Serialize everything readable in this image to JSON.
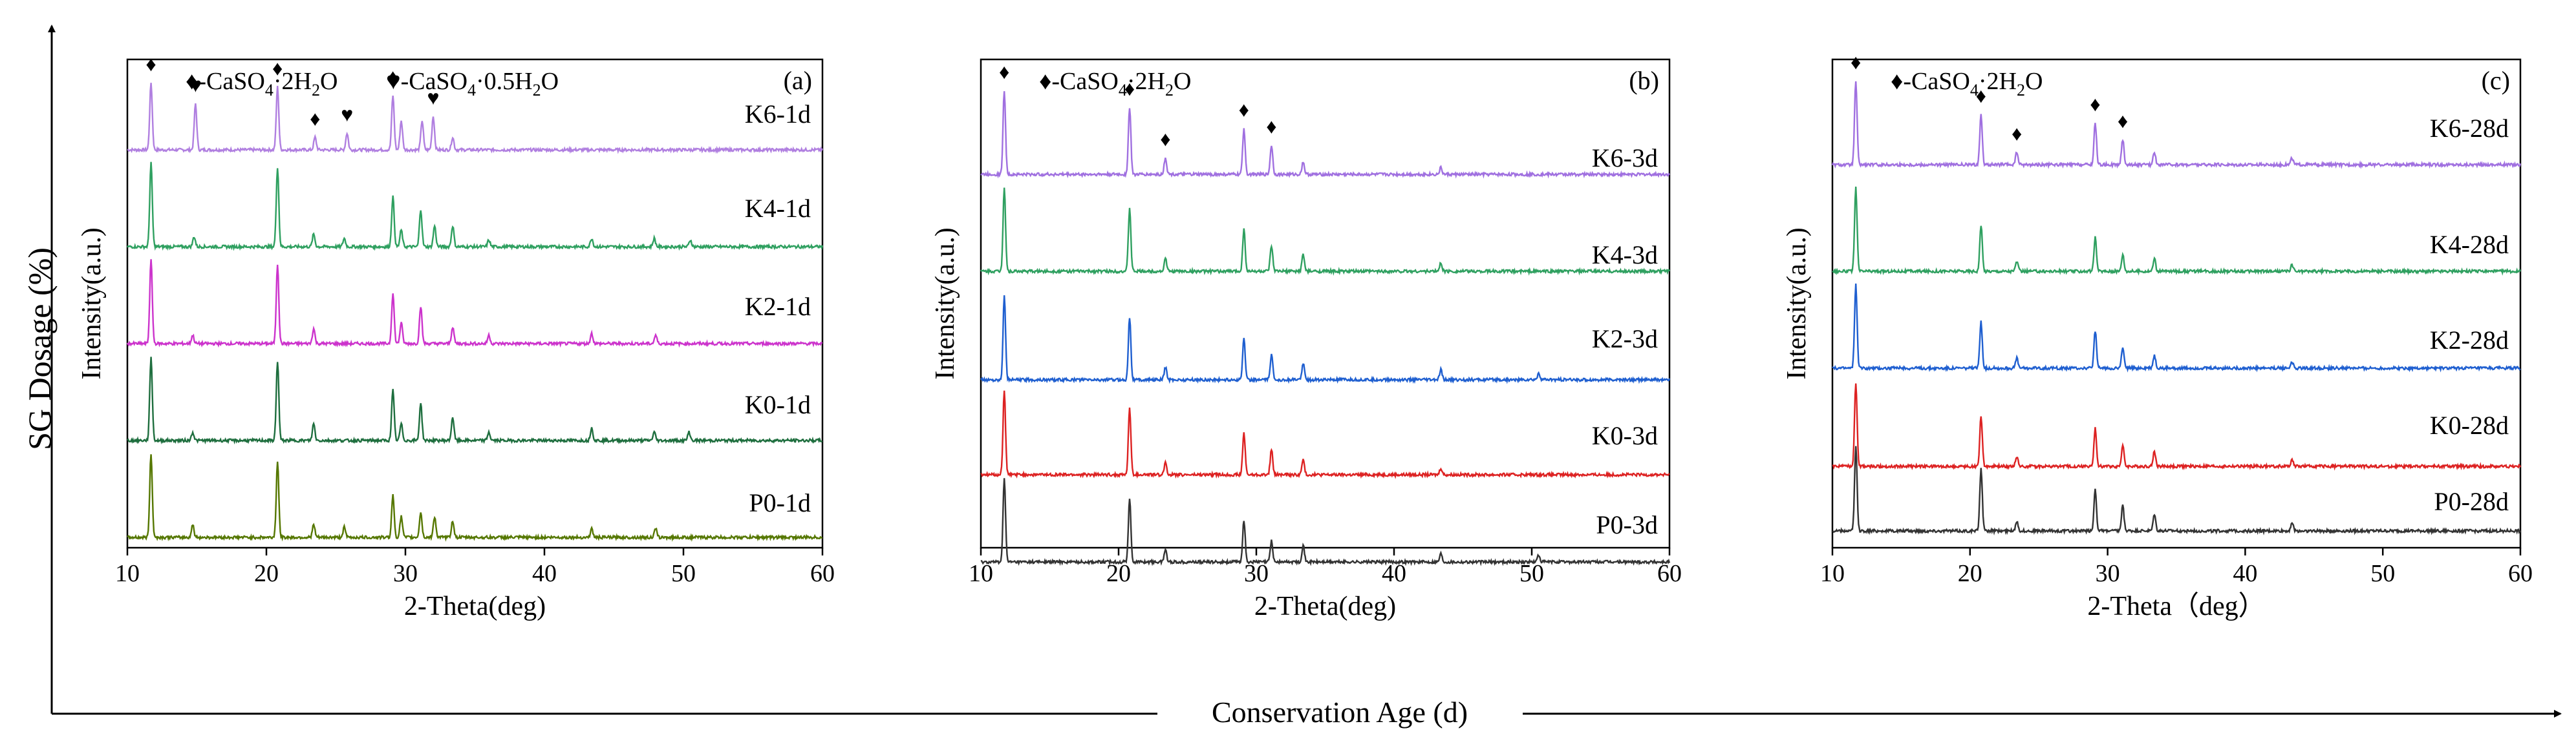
{
  "y_axis_label": "SG Dosage (%)",
  "x_axis_label": "Conservation Age (d)",
  "chart_data": [
    {
      "type": "line",
      "panel_label": "(a)",
      "xlabel": "2-Theta(deg)",
      "ylabel": "Intensity(a.u.)",
      "xlim": [
        10,
        60
      ],
      "xticks": [
        "10",
        "20",
        "30",
        "40",
        "50",
        "60"
      ],
      "legend": [
        {
          "symbol": "♦",
          "text": "-CaSO",
          "sub": "4",
          "tail": "·2H",
          "sub2": "2",
          "end": "O"
        },
        {
          "symbol": "♥",
          "text": "-CaSO",
          "sub": "4",
          "tail": "·0.5H",
          "sub2": "2",
          "end": "O"
        }
      ],
      "peak_markers": [
        {
          "symbol": "♦",
          "x": 11.7
        },
        {
          "symbol": "♥",
          "x": 14.9
        },
        {
          "symbol": "♦",
          "x": 20.8
        },
        {
          "symbol": "♦",
          "x": 23.5
        },
        {
          "symbol": "♥",
          "x": 25.8
        },
        {
          "symbol": "♦",
          "x": 29.1
        },
        {
          "symbol": "♥",
          "x": 32.0
        }
      ],
      "series": [
        {
          "name": "K6-1d",
          "color": "#b07fe0",
          "peaks": [
            [
              11.7,
              0.8
            ],
            [
              14.9,
              0.55
            ],
            [
              20.8,
              0.75
            ],
            [
              23.5,
              0.15
            ],
            [
              25.8,
              0.2
            ],
            [
              29.1,
              0.65
            ],
            [
              29.7,
              0.35
            ],
            [
              31.2,
              0.35
            ],
            [
              32.0,
              0.4
            ],
            [
              33.4,
              0.15
            ]
          ]
        },
        {
          "name": "K4-1d",
          "color": "#2fa060",
          "peaks": [
            [
              11.7,
              1.0
            ],
            [
              14.8,
              0.12
            ],
            [
              20.8,
              0.95
            ],
            [
              23.4,
              0.15
            ],
            [
              25.6,
              0.1
            ],
            [
              29.1,
              0.6
            ],
            [
              29.7,
              0.2
            ],
            [
              31.1,
              0.45
            ],
            [
              32.1,
              0.25
            ],
            [
              33.4,
              0.25
            ],
            [
              36.0,
              0.08
            ],
            [
              43.4,
              0.1
            ],
            [
              47.9,
              0.1
            ],
            [
              50.5,
              0.08
            ]
          ]
        },
        {
          "name": "K2-1d",
          "color": "#cc33cc",
          "peaks": [
            [
              11.7,
              1.0
            ],
            [
              14.7,
              0.1
            ],
            [
              20.8,
              0.95
            ],
            [
              23.4,
              0.18
            ],
            [
              29.1,
              0.6
            ],
            [
              29.7,
              0.25
            ],
            [
              31.1,
              0.45
            ],
            [
              33.4,
              0.2
            ],
            [
              36.0,
              0.1
            ],
            [
              43.4,
              0.12
            ],
            [
              48.0,
              0.1
            ]
          ]
        },
        {
          "name": "K0-1d",
          "color": "#1e6e3e",
          "peaks": [
            [
              11.7,
              1.0
            ],
            [
              14.7,
              0.1
            ],
            [
              20.8,
              0.95
            ],
            [
              23.4,
              0.2
            ],
            [
              29.1,
              0.6
            ],
            [
              29.7,
              0.2
            ],
            [
              31.1,
              0.45
            ],
            [
              33.4,
              0.28
            ],
            [
              36.0,
              0.1
            ],
            [
              43.4,
              0.15
            ],
            [
              47.9,
              0.1
            ],
            [
              50.4,
              0.1
            ]
          ]
        },
        {
          "name": "P0-1d",
          "color": "#557700",
          "peaks": [
            [
              11.7,
              1.0
            ],
            [
              14.7,
              0.15
            ],
            [
              20.8,
              0.9
            ],
            [
              23.4,
              0.15
            ],
            [
              25.6,
              0.12
            ],
            [
              29.1,
              0.5
            ],
            [
              29.7,
              0.25
            ],
            [
              31.1,
              0.3
            ],
            [
              32.1,
              0.25
            ],
            [
              33.4,
              0.2
            ],
            [
              43.4,
              0.1
            ],
            [
              48.0,
              0.1
            ]
          ]
        }
      ]
    },
    {
      "type": "line",
      "panel_label": "(b)",
      "xlabel": "2-Theta(deg)",
      "ylabel": "Intensity(a.u.)",
      "xlim": [
        10,
        60
      ],
      "xticks": [
        "10",
        "20",
        "30",
        "40",
        "50",
        "60"
      ],
      "legend": [
        {
          "symbol": "♦",
          "text": "-CaSO",
          "sub": "4",
          "tail": "·2H",
          "sub2": "2",
          "end": "O"
        }
      ],
      "peak_markers": [
        {
          "symbol": "♦",
          "x": 11.7
        },
        {
          "symbol": "♦",
          "x": 20.8
        },
        {
          "symbol": "♦",
          "x": 23.4
        },
        {
          "symbol": "♦",
          "x": 29.1
        },
        {
          "symbol": "♦",
          "x": 31.1
        }
      ],
      "series": [
        {
          "name": "K6-3d",
          "color": "#a070e0",
          "peaks": [
            [
              11.7,
              1.0
            ],
            [
              20.8,
              0.8
            ],
            [
              23.4,
              0.2
            ],
            [
              29.1,
              0.55
            ],
            [
              31.1,
              0.35
            ],
            [
              33.4,
              0.15
            ],
            [
              43.4,
              0.08
            ]
          ]
        },
        {
          "name": "K4-3d",
          "color": "#2fa060",
          "peaks": [
            [
              11.7,
              1.0
            ],
            [
              20.8,
              0.75
            ],
            [
              23.4,
              0.15
            ],
            [
              29.1,
              0.5
            ],
            [
              31.1,
              0.3
            ],
            [
              33.4,
              0.2
            ],
            [
              43.4,
              0.1
            ]
          ]
        },
        {
          "name": "K2-3d",
          "color": "#1f5fd0",
          "peaks": [
            [
              11.7,
              1.0
            ],
            [
              20.8,
              0.75
            ],
            [
              23.4,
              0.15
            ],
            [
              29.1,
              0.5
            ],
            [
              31.1,
              0.3
            ],
            [
              33.4,
              0.2
            ],
            [
              43.4,
              0.12
            ],
            [
              50.5,
              0.08
            ]
          ]
        },
        {
          "name": "K0-3d",
          "color": "#dd2222",
          "peaks": [
            [
              11.7,
              1.0
            ],
            [
              20.8,
              0.8
            ],
            [
              23.4,
              0.15
            ],
            [
              29.1,
              0.5
            ],
            [
              31.1,
              0.3
            ],
            [
              33.4,
              0.18
            ],
            [
              43.4,
              0.08
            ]
          ]
        },
        {
          "name": "P0-3d",
          "color": "#333333",
          "peaks": [
            [
              11.7,
              1.0
            ],
            [
              20.8,
              0.75
            ],
            [
              23.4,
              0.15
            ],
            [
              29.1,
              0.5
            ],
            [
              31.1,
              0.25
            ],
            [
              33.4,
              0.2
            ],
            [
              43.4,
              0.1
            ],
            [
              50.5,
              0.08
            ]
          ]
        }
      ]
    },
    {
      "type": "line",
      "panel_label": "(c)",
      "xlabel": "2-Theta（deg）",
      "ylabel": "Intensity(a.u.)",
      "xlim": [
        10,
        60
      ],
      "xticks": [
        "10",
        "20",
        "30",
        "40",
        "50",
        "60"
      ],
      "legend": [
        {
          "symbol": "♦",
          "text": "-CaSO",
          "sub": "4",
          "tail": "·2H",
          "sub2": "2",
          "end": "O"
        }
      ],
      "peak_markers": [
        {
          "symbol": "♦",
          "x": 11.7
        },
        {
          "symbol": "♦",
          "x": 20.8
        },
        {
          "symbol": "♦",
          "x": 23.4
        },
        {
          "symbol": "♦",
          "x": 29.1
        },
        {
          "symbol": "♦",
          "x": 31.1
        }
      ],
      "series": [
        {
          "name": "K6-28d",
          "color": "#a070e0",
          "peaks": [
            [
              11.7,
              1.0
            ],
            [
              20.8,
              0.6
            ],
            [
              23.4,
              0.15
            ],
            [
              29.1,
              0.5
            ],
            [
              31.1,
              0.3
            ],
            [
              33.4,
              0.15
            ],
            [
              43.4,
              0.08
            ]
          ]
        },
        {
          "name": "K4-28d",
          "color": "#2fa060",
          "peaks": [
            [
              11.7,
              1.0
            ],
            [
              20.8,
              0.55
            ],
            [
              23.4,
              0.12
            ],
            [
              29.1,
              0.4
            ],
            [
              31.1,
              0.2
            ],
            [
              33.4,
              0.15
            ],
            [
              43.4,
              0.08
            ]
          ]
        },
        {
          "name": "K2-28d",
          "color": "#1f5fd0",
          "peaks": [
            [
              11.7,
              1.0
            ],
            [
              20.8,
              0.55
            ],
            [
              23.4,
              0.12
            ],
            [
              29.1,
              0.45
            ],
            [
              31.1,
              0.25
            ],
            [
              33.4,
              0.15
            ],
            [
              43.4,
              0.08
            ]
          ]
        },
        {
          "name": "K0-28d",
          "color": "#dd2222",
          "peaks": [
            [
              11.7,
              1.0
            ],
            [
              20.8,
              0.6
            ],
            [
              23.4,
              0.12
            ],
            [
              29.1,
              0.45
            ],
            [
              31.1,
              0.25
            ],
            [
              33.4,
              0.18
            ],
            [
              43.4,
              0.08
            ]
          ]
        },
        {
          "name": "P0-28d",
          "color": "#333333",
          "peaks": [
            [
              11.7,
              1.0
            ],
            [
              20.8,
              0.75
            ],
            [
              23.4,
              0.12
            ],
            [
              29.1,
              0.5
            ],
            [
              31.1,
              0.3
            ],
            [
              33.4,
              0.2
            ],
            [
              43.4,
              0.1
            ]
          ]
        }
      ]
    }
  ]
}
